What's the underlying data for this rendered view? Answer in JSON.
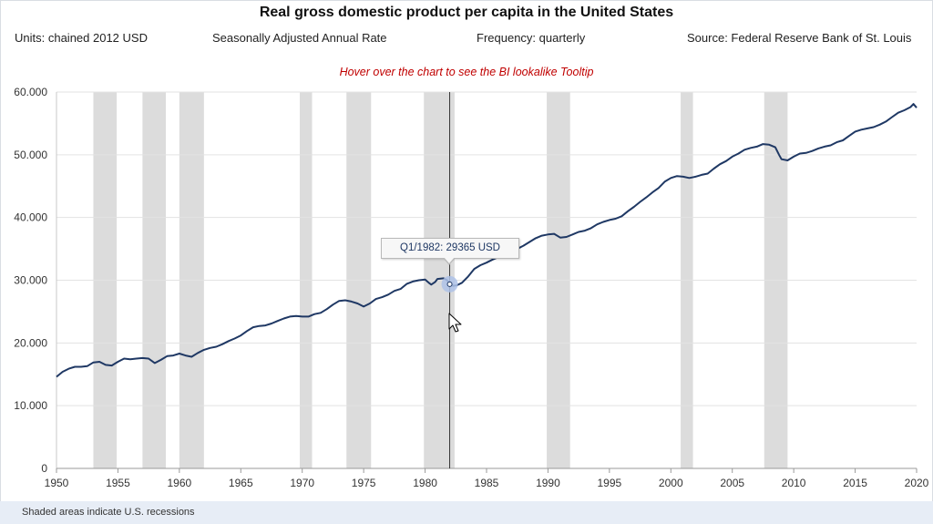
{
  "header": {
    "title": "Real gross domestic product per capita in the United States",
    "units": "Units: chained 2012 USD",
    "adjustment": "Seasonally Adjusted Annual Rate",
    "frequency": "Frequency: quarterly",
    "source": "Source: Federal Reserve Bank of St. Louis",
    "hint": "Hover over the chart to see the BI lookalike Tooltip"
  },
  "footer": {
    "note": "Shaded areas indicate U.S. recessions"
  },
  "tooltip": {
    "text": "Q1/1982: 29365 USD",
    "year": 1982.0,
    "value": 29365
  },
  "colors": {
    "line": "#1f3864",
    "recession": "#dcdcdc",
    "grid": "#e3e3e3",
    "marker": "#aec2e8",
    "hint": "#c00000"
  },
  "chart_data": {
    "type": "line",
    "title": "Real gross domestic product per capita in the United States",
    "xlabel": "",
    "ylabel": "",
    "xlim": [
      1950,
      2020
    ],
    "ylim": [
      0,
      60000
    ],
    "x_ticks": [
      "1950",
      "1955",
      "1960",
      "1965",
      "1970",
      "1975",
      "1980",
      "1985",
      "1990",
      "1995",
      "2000",
      "2005",
      "2010",
      "2015",
      "2020"
    ],
    "y_ticks": [
      "0",
      "10.000",
      "20.000",
      "30.000",
      "40.000",
      "50.000",
      "60.000"
    ],
    "recessions": [
      [
        1953.0,
        1954.9
      ],
      [
        1957.0,
        1958.9
      ],
      [
        1960.0,
        1962.0
      ],
      [
        1969.8,
        1970.8
      ],
      [
        1973.6,
        1975.6
      ],
      [
        1979.9,
        1982.4
      ],
      [
        1989.9,
        1991.8
      ],
      [
        2000.8,
        2001.8
      ],
      [
        2007.6,
        2009.5
      ]
    ],
    "series": [
      {
        "values": [
          [
            1950.0,
            14600
          ],
          [
            1950.5,
            15400
          ],
          [
            1951.0,
            15900
          ],
          [
            1951.5,
            16200
          ],
          [
            1952.0,
            16200
          ],
          [
            1952.5,
            16300
          ],
          [
            1953.0,
            16900
          ],
          [
            1953.5,
            17000
          ],
          [
            1954.0,
            16500
          ],
          [
            1954.5,
            16400
          ],
          [
            1955.0,
            17000
          ],
          [
            1955.5,
            17500
          ],
          [
            1956.0,
            17400
          ],
          [
            1956.5,
            17500
          ],
          [
            1957.0,
            17600
          ],
          [
            1957.5,
            17500
          ],
          [
            1958.0,
            16800
          ],
          [
            1958.5,
            17300
          ],
          [
            1959.0,
            17900
          ],
          [
            1959.5,
            18000
          ],
          [
            1960.0,
            18300
          ],
          [
            1960.5,
            18000
          ],
          [
            1961.0,
            17800
          ],
          [
            1961.5,
            18400
          ],
          [
            1962.0,
            18900
          ],
          [
            1962.5,
            19200
          ],
          [
            1963.0,
            19400
          ],
          [
            1963.5,
            19800
          ],
          [
            1964.0,
            20300
          ],
          [
            1964.5,
            20700
          ],
          [
            1965.0,
            21200
          ],
          [
            1965.5,
            21900
          ],
          [
            1966.0,
            22500
          ],
          [
            1966.5,
            22700
          ],
          [
            1967.0,
            22800
          ],
          [
            1967.5,
            23100
          ],
          [
            1968.0,
            23500
          ],
          [
            1968.5,
            23900
          ],
          [
            1969.0,
            24200
          ],
          [
            1969.5,
            24300
          ],
          [
            1970.0,
            24200
          ],
          [
            1970.5,
            24200
          ],
          [
            1971.0,
            24600
          ],
          [
            1971.5,
            24800
          ],
          [
            1972.0,
            25400
          ],
          [
            1972.5,
            26100
          ],
          [
            1973.0,
            26700
          ],
          [
            1973.5,
            26800
          ],
          [
            1974.0,
            26600
          ],
          [
            1974.5,
            26300
          ],
          [
            1975.0,
            25800
          ],
          [
            1975.5,
            26300
          ],
          [
            1976.0,
            27000
          ],
          [
            1976.5,
            27300
          ],
          [
            1977.0,
            27700
          ],
          [
            1977.5,
            28300
          ],
          [
            1978.0,
            28600
          ],
          [
            1978.5,
            29400
          ],
          [
            1979.0,
            29800
          ],
          [
            1979.5,
            30000
          ],
          [
            1980.0,
            30100
          ],
          [
            1980.3,
            29600
          ],
          [
            1980.5,
            29300
          ],
          [
            1980.8,
            29700
          ],
          [
            1981.0,
            30200
          ],
          [
            1981.5,
            30300
          ],
          [
            1981.8,
            30000
          ],
          [
            1982.0,
            29365
          ],
          [
            1982.3,
            29100
          ],
          [
            1982.6,
            29200
          ],
          [
            1983.0,
            29600
          ],
          [
            1983.5,
            30600
          ],
          [
            1984.0,
            31800
          ],
          [
            1984.5,
            32400
          ],
          [
            1985.0,
            32800
          ],
          [
            1985.5,
            33300
          ],
          [
            1986.0,
            33700
          ],
          [
            1986.5,
            34100
          ],
          [
            1987.0,
            34500
          ],
          [
            1987.5,
            35000
          ],
          [
            1988.0,
            35500
          ],
          [
            1988.5,
            36100
          ],
          [
            1989.0,
            36700
          ],
          [
            1989.5,
            37100
          ],
          [
            1990.0,
            37300
          ],
          [
            1990.5,
            37400
          ],
          [
            1991.0,
            36800
          ],
          [
            1991.5,
            36900
          ],
          [
            1992.0,
            37300
          ],
          [
            1992.5,
            37700
          ],
          [
            1993.0,
            37900
          ],
          [
            1993.5,
            38300
          ],
          [
            1994.0,
            38900
          ],
          [
            1994.5,
            39300
          ],
          [
            1995.0,
            39600
          ],
          [
            1995.5,
            39800
          ],
          [
            1996.0,
            40200
          ],
          [
            1996.5,
            41000
          ],
          [
            1997.0,
            41700
          ],
          [
            1997.5,
            42500
          ],
          [
            1998.0,
            43200
          ],
          [
            1998.5,
            44000
          ],
          [
            1999.0,
            44700
          ],
          [
            1999.5,
            45700
          ],
          [
            2000.0,
            46300
          ],
          [
            2000.5,
            46600
          ],
          [
            2001.0,
            46500
          ],
          [
            2001.5,
            46300
          ],
          [
            2002.0,
            46500
          ],
          [
            2002.5,
            46800
          ],
          [
            2003.0,
            47000
          ],
          [
            2003.5,
            47800
          ],
          [
            2004.0,
            48500
          ],
          [
            2004.5,
            49000
          ],
          [
            2005.0,
            49700
          ],
          [
            2005.5,
            50200
          ],
          [
            2006.0,
            50800
          ],
          [
            2006.5,
            51100
          ],
          [
            2007.0,
            51300
          ],
          [
            2007.5,
            51700
          ],
          [
            2008.0,
            51600
          ],
          [
            2008.5,
            51200
          ],
          [
            2008.8,
            50000
          ],
          [
            2009.0,
            49300
          ],
          [
            2009.5,
            49100
          ],
          [
            2010.0,
            49700
          ],
          [
            2010.5,
            50200
          ],
          [
            2011.0,
            50300
          ],
          [
            2011.5,
            50600
          ],
          [
            2012.0,
            51000
          ],
          [
            2012.5,
            51300
          ],
          [
            2013.0,
            51500
          ],
          [
            2013.5,
            52000
          ],
          [
            2014.0,
            52300
          ],
          [
            2014.5,
            53000
          ],
          [
            2015.0,
            53700
          ],
          [
            2015.5,
            54000
          ],
          [
            2016.0,
            54200
          ],
          [
            2016.5,
            54400
          ],
          [
            2017.0,
            54800
          ],
          [
            2017.5,
            55300
          ],
          [
            2018.0,
            56000
          ],
          [
            2018.5,
            56700
          ],
          [
            2019.0,
            57100
          ],
          [
            2019.5,
            57600
          ],
          [
            2019.75,
            58100
          ],
          [
            2020.0,
            57500
          ]
        ]
      }
    ]
  }
}
